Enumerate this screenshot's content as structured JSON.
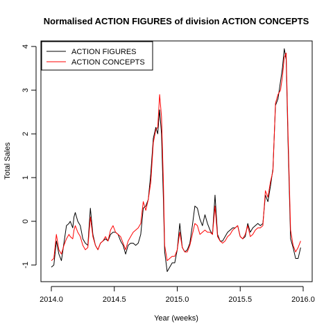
{
  "chart_data": {
    "type": "line",
    "title": "Normalised ACTION FIGURES of division ACTION CONCEPTS",
    "xlabel": "Year (weeks)",
    "ylabel": "Total Sales",
    "xlim": [
      2014.0,
      2016.0
    ],
    "ylim": [
      -1.25,
      4.2
    ],
    "xticks": [
      2014.0,
      2014.5,
      2015.0,
      2015.5,
      2016.0
    ],
    "xtick_labels": [
      "2014.0",
      "2014.5",
      "2015.0",
      "2015.5",
      "2016.0"
    ],
    "yticks": [
      -1,
      0,
      1,
      2,
      3,
      4
    ],
    "ytick_labels": [
      "-1",
      "0",
      "1",
      "2",
      "3",
      "4"
    ],
    "grid": false,
    "legend_position": "top-left",
    "series": [
      {
        "name": "ACTION FIGURES",
        "color": "#000000",
        "points": [
          [
            2014.0,
            -1.05
          ],
          [
            2014.02,
            -1.0
          ],
          [
            2014.04,
            -0.45
          ],
          [
            2014.06,
            -0.75
          ],
          [
            2014.08,
            -0.9
          ],
          [
            2014.1,
            -0.5
          ],
          [
            2014.12,
            -0.1
          ],
          [
            2014.14,
            -0.05
          ],
          [
            2014.15,
            0.0
          ],
          [
            2014.17,
            -0.15
          ],
          [
            2014.18,
            0.1
          ],
          [
            2014.19,
            0.2
          ],
          [
            2014.21,
            0.0
          ],
          [
            2014.23,
            -0.1
          ],
          [
            2014.25,
            -0.4
          ],
          [
            2014.27,
            -0.5
          ],
          [
            2014.29,
            -0.55
          ],
          [
            2014.31,
            0.3
          ],
          [
            2014.33,
            -0.3
          ],
          [
            2014.35,
            -0.55
          ],
          [
            2014.37,
            -0.65
          ],
          [
            2014.39,
            -0.5
          ],
          [
            2014.41,
            -0.45
          ],
          [
            2014.43,
            -0.4
          ],
          [
            2014.45,
            -0.45
          ],
          [
            2014.47,
            -0.3
          ],
          [
            2014.49,
            -0.25
          ],
          [
            2014.51,
            -0.25
          ],
          [
            2014.53,
            -0.3
          ],
          [
            2014.55,
            -0.45
          ],
          [
            2014.57,
            -0.55
          ],
          [
            2014.59,
            -0.75
          ],
          [
            2014.61,
            -0.55
          ],
          [
            2014.63,
            -0.5
          ],
          [
            2014.65,
            -0.5
          ],
          [
            2014.67,
            -0.55
          ],
          [
            2014.69,
            -0.5
          ],
          [
            2014.71,
            -0.3
          ],
          [
            2014.73,
            0.3
          ],
          [
            2014.75,
            0.35
          ],
          [
            2014.77,
            0.5
          ],
          [
            2014.79,
            1.1
          ],
          [
            2014.81,
            1.9
          ],
          [
            2014.83,
            2.15
          ],
          [
            2014.845,
            2.0
          ],
          [
            2014.86,
            2.55
          ],
          [
            2014.875,
            2.0
          ],
          [
            2014.89,
            0.5
          ],
          [
            2014.9,
            -0.7
          ],
          [
            2014.92,
            -1.15
          ],
          [
            2014.94,
            -1.05
          ],
          [
            2014.96,
            -0.95
          ],
          [
            2014.98,
            -0.95
          ],
          [
            2015.0,
            -0.65
          ],
          [
            2015.02,
            -0.05
          ],
          [
            2015.04,
            -0.6
          ],
          [
            2015.06,
            -0.7
          ],
          [
            2015.08,
            -0.65
          ],
          [
            2015.1,
            -0.5
          ],
          [
            2015.12,
            -0.1
          ],
          [
            2015.14,
            0.35
          ],
          [
            2015.16,
            0.3
          ],
          [
            2015.18,
            0.05
          ],
          [
            2015.2,
            -0.1
          ],
          [
            2015.22,
            0.15
          ],
          [
            2015.24,
            -0.05
          ],
          [
            2015.26,
            -0.2
          ],
          [
            2015.28,
            -0.3
          ],
          [
            2015.3,
            0.6
          ],
          [
            2015.32,
            -0.3
          ],
          [
            2015.34,
            -0.45
          ],
          [
            2015.36,
            -0.45
          ],
          [
            2015.38,
            -0.35
          ],
          [
            2015.4,
            -0.25
          ],
          [
            2015.42,
            -0.2
          ],
          [
            2015.44,
            -0.15
          ],
          [
            2015.46,
            -0.15
          ],
          [
            2015.48,
            -0.1
          ],
          [
            2015.5,
            -0.35
          ],
          [
            2015.52,
            -0.4
          ],
          [
            2015.54,
            -0.35
          ],
          [
            2015.56,
            -0.05
          ],
          [
            2015.58,
            -0.25
          ],
          [
            2015.6,
            -0.15
          ],
          [
            2015.62,
            -0.1
          ],
          [
            2015.64,
            -0.05
          ],
          [
            2015.66,
            -0.1
          ],
          [
            2015.68,
            -0.05
          ],
          [
            2015.7,
            0.6
          ],
          [
            2015.72,
            0.45
          ],
          [
            2015.74,
            0.8
          ],
          [
            2015.76,
            1.2
          ],
          [
            2015.78,
            2.65
          ],
          [
            2015.8,
            2.8
          ],
          [
            2015.82,
            3.2
          ],
          [
            2015.835,
            3.5
          ],
          [
            2015.85,
            3.95
          ],
          [
            2015.865,
            3.7
          ],
          [
            2015.88,
            1.8
          ],
          [
            2015.9,
            -0.4
          ],
          [
            2015.92,
            -0.6
          ],
          [
            2015.94,
            -0.85
          ],
          [
            2015.96,
            -0.85
          ],
          [
            2015.98,
            -0.6
          ]
        ]
      },
      {
        "name": "ACTION CONCEPTS",
        "color": "#ff0000",
        "points": [
          [
            2014.0,
            -0.9
          ],
          [
            2014.02,
            -0.85
          ],
          [
            2014.04,
            -0.3
          ],
          [
            2014.06,
            -0.65
          ],
          [
            2014.08,
            -0.75
          ],
          [
            2014.1,
            -0.55
          ],
          [
            2014.12,
            -0.4
          ],
          [
            2014.14,
            -0.3
          ],
          [
            2014.15,
            -0.35
          ],
          [
            2014.17,
            -0.4
          ],
          [
            2014.18,
            -0.2
          ],
          [
            2014.19,
            -0.1
          ],
          [
            2014.21,
            -0.25
          ],
          [
            2014.23,
            -0.35
          ],
          [
            2014.25,
            -0.55
          ],
          [
            2014.27,
            -0.65
          ],
          [
            2014.29,
            -0.6
          ],
          [
            2014.31,
            0.1
          ],
          [
            2014.33,
            -0.35
          ],
          [
            2014.35,
            -0.55
          ],
          [
            2014.37,
            -0.65
          ],
          [
            2014.39,
            -0.5
          ],
          [
            2014.41,
            -0.45
          ],
          [
            2014.43,
            -0.35
          ],
          [
            2014.45,
            -0.45
          ],
          [
            2014.47,
            -0.2
          ],
          [
            2014.49,
            -0.1
          ],
          [
            2014.51,
            -0.25
          ],
          [
            2014.53,
            -0.3
          ],
          [
            2014.55,
            -0.35
          ],
          [
            2014.57,
            -0.5
          ],
          [
            2014.59,
            -0.65
          ],
          [
            2014.61,
            -0.45
          ],
          [
            2014.63,
            -0.35
          ],
          [
            2014.65,
            -0.25
          ],
          [
            2014.67,
            -0.2
          ],
          [
            2014.69,
            -0.15
          ],
          [
            2014.71,
            -0.05
          ],
          [
            2014.73,
            0.45
          ],
          [
            2014.75,
            0.25
          ],
          [
            2014.77,
            0.5
          ],
          [
            2014.79,
            0.9
          ],
          [
            2014.81,
            1.8
          ],
          [
            2014.83,
            2.1
          ],
          [
            2014.845,
            2.15
          ],
          [
            2014.86,
            2.9
          ],
          [
            2014.875,
            2.4
          ],
          [
            2014.89,
            0.9
          ],
          [
            2014.9,
            -0.55
          ],
          [
            2014.92,
            -0.9
          ],
          [
            2014.94,
            -0.85
          ],
          [
            2014.96,
            -0.8
          ],
          [
            2014.98,
            -0.8
          ],
          [
            2015.0,
            -0.65
          ],
          [
            2015.02,
            -0.25
          ],
          [
            2015.04,
            -0.6
          ],
          [
            2015.06,
            -0.7
          ],
          [
            2015.08,
            -0.7
          ],
          [
            2015.1,
            -0.55
          ],
          [
            2015.12,
            -0.3
          ],
          [
            2015.14,
            -0.05
          ],
          [
            2015.16,
            -0.1
          ],
          [
            2015.18,
            -0.3
          ],
          [
            2015.2,
            -0.25
          ],
          [
            2015.22,
            -0.2
          ],
          [
            2015.24,
            -0.25
          ],
          [
            2015.26,
            -0.25
          ],
          [
            2015.28,
            -0.3
          ],
          [
            2015.3,
            0.35
          ],
          [
            2015.32,
            -0.35
          ],
          [
            2015.34,
            -0.45
          ],
          [
            2015.36,
            -0.5
          ],
          [
            2015.38,
            -0.45
          ],
          [
            2015.4,
            -0.35
          ],
          [
            2015.42,
            -0.3
          ],
          [
            2015.44,
            -0.2
          ],
          [
            2015.46,
            -0.15
          ],
          [
            2015.48,
            -0.1
          ],
          [
            2015.5,
            -0.35
          ],
          [
            2015.52,
            -0.4
          ],
          [
            2015.54,
            -0.3
          ],
          [
            2015.56,
            -0.1
          ],
          [
            2015.58,
            -0.35
          ],
          [
            2015.6,
            -0.3
          ],
          [
            2015.62,
            -0.2
          ],
          [
            2015.64,
            -0.15
          ],
          [
            2015.66,
            -0.15
          ],
          [
            2015.68,
            -0.1
          ],
          [
            2015.7,
            0.7
          ],
          [
            2015.72,
            0.55
          ],
          [
            2015.74,
            0.9
          ],
          [
            2015.76,
            1.15
          ],
          [
            2015.78,
            2.7
          ],
          [
            2015.8,
            2.9
          ],
          [
            2015.82,
            3.0
          ],
          [
            2015.835,
            3.3
          ],
          [
            2015.85,
            3.75
          ],
          [
            2015.865,
            3.85
          ],
          [
            2015.88,
            2.0
          ],
          [
            2015.9,
            -0.2
          ],
          [
            2015.92,
            -0.55
          ],
          [
            2015.94,
            -0.7
          ],
          [
            2015.96,
            -0.6
          ],
          [
            2015.98,
            -0.45
          ]
        ]
      }
    ]
  }
}
